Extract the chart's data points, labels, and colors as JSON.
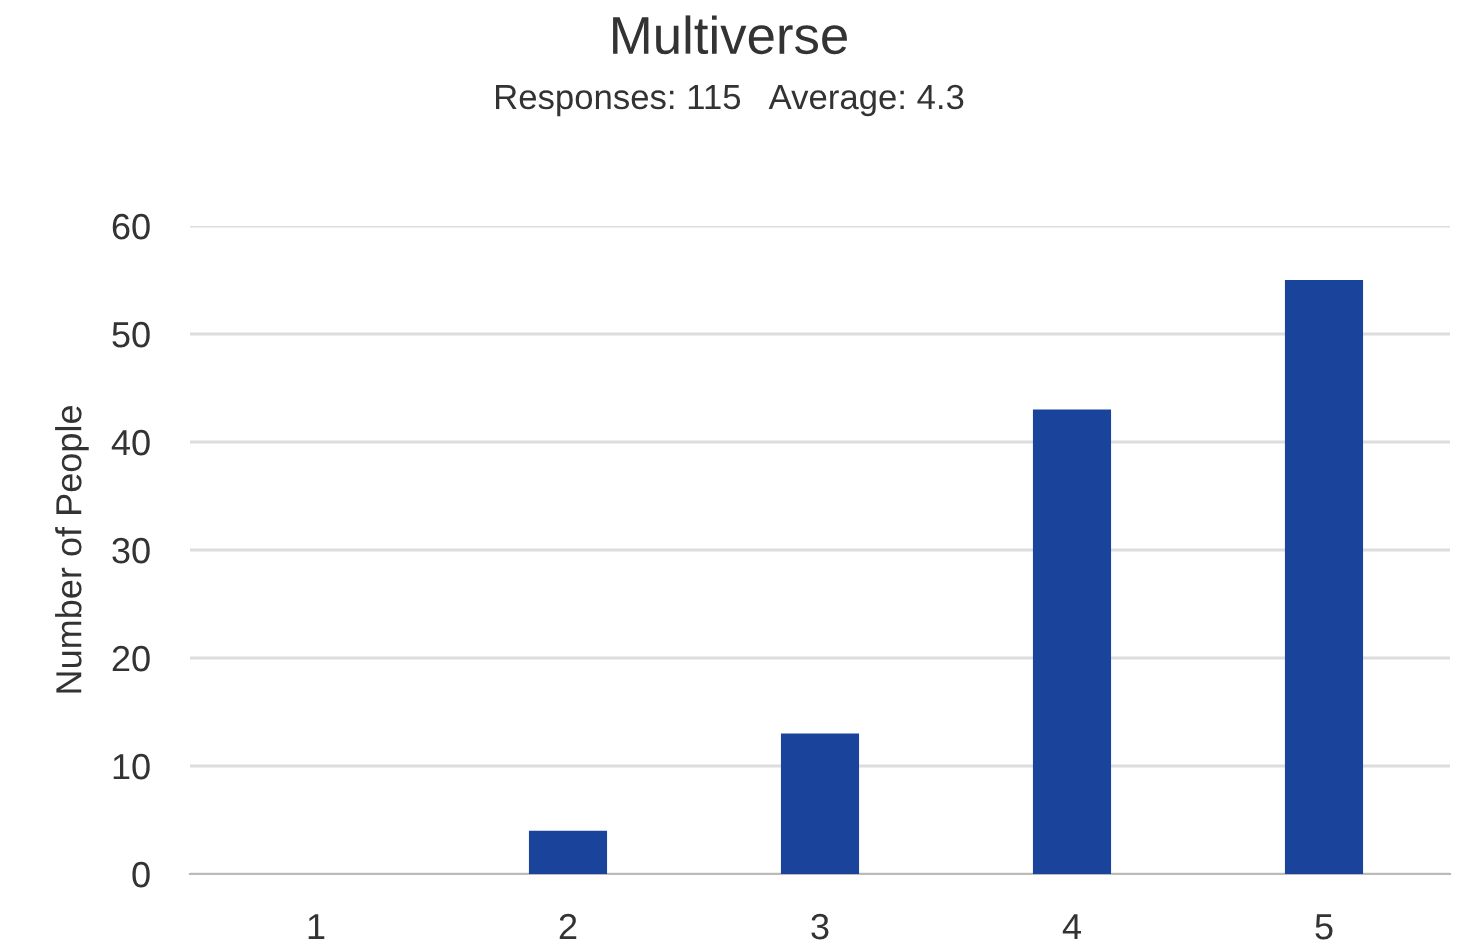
{
  "chart_data": {
    "type": "bar",
    "title": "Multiverse",
    "subtitle": "Responses: 115   Average: 4.3",
    "ylabel": "Number of People",
    "categories": [
      "1",
      "2",
      "3",
      "4",
      "5"
    ],
    "values": [
      0,
      4,
      13,
      43,
      55
    ],
    "color": "#1a439b",
    "ylim": [
      0,
      60
    ],
    "yticks": [
      0,
      10,
      20,
      30,
      40,
      50,
      60
    ],
    "grid": "y"
  }
}
